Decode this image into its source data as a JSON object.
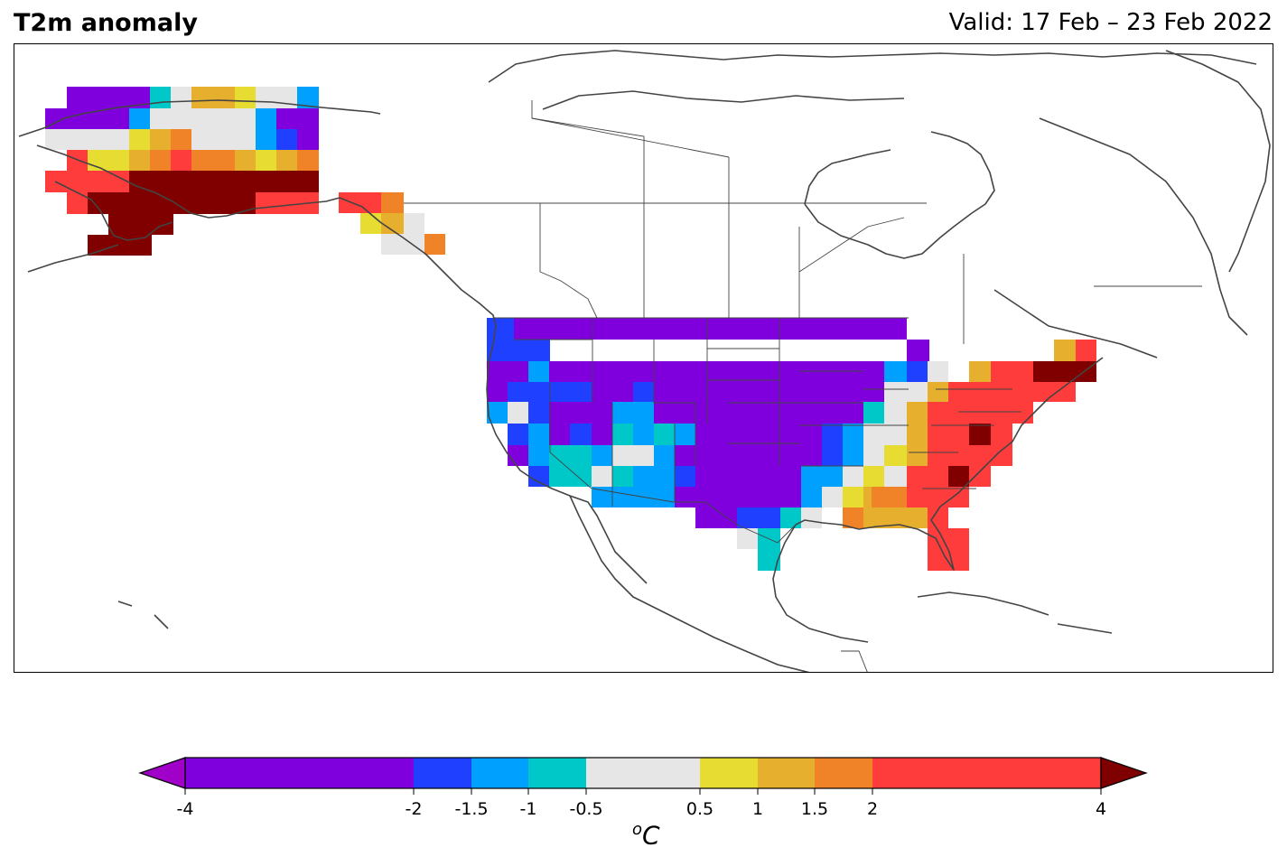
{
  "header": {
    "title": "T2m anomaly",
    "valid": "Valid: 17 Feb – 23 Feb 2022"
  },
  "colorbar": {
    "unit_base": "C",
    "unit_sup": "o",
    "ticks": [
      "-4",
      "-2",
      "-1.5",
      "-1",
      "-0.5",
      "0.5",
      "1",
      "1.5",
      "2",
      "4"
    ],
    "bins": [
      {
        "from": -4,
        "to": -2,
        "color": "#7F00DD"
      },
      {
        "from": -2,
        "to": -1.5,
        "color": "#2040FF"
      },
      {
        "from": -1.5,
        "to": -1,
        "color": "#00A0FF"
      },
      {
        "from": -1,
        "to": -0.5,
        "color": "#00C8C8"
      },
      {
        "from": -0.5,
        "to": 0.5,
        "color": "#E6E6E6"
      },
      {
        "from": 0.5,
        "to": 1,
        "color": "#E6DC32"
      },
      {
        "from": 1,
        "to": 1.5,
        "color": "#E6AF2D"
      },
      {
        "from": 1.5,
        "to": 2,
        "color": "#F08228"
      },
      {
        "from": 2,
        "to": 4,
        "color": "#FF3C3C"
      }
    ],
    "under_color": "#A000C8",
    "over_color": "#800000"
  },
  "map": {
    "projection": "PlateCarree",
    "extent_lon": [
      -170,
      -50
    ],
    "extent_lat": [
      10,
      70
    ],
    "coastline_color": "#444444"
  }
}
